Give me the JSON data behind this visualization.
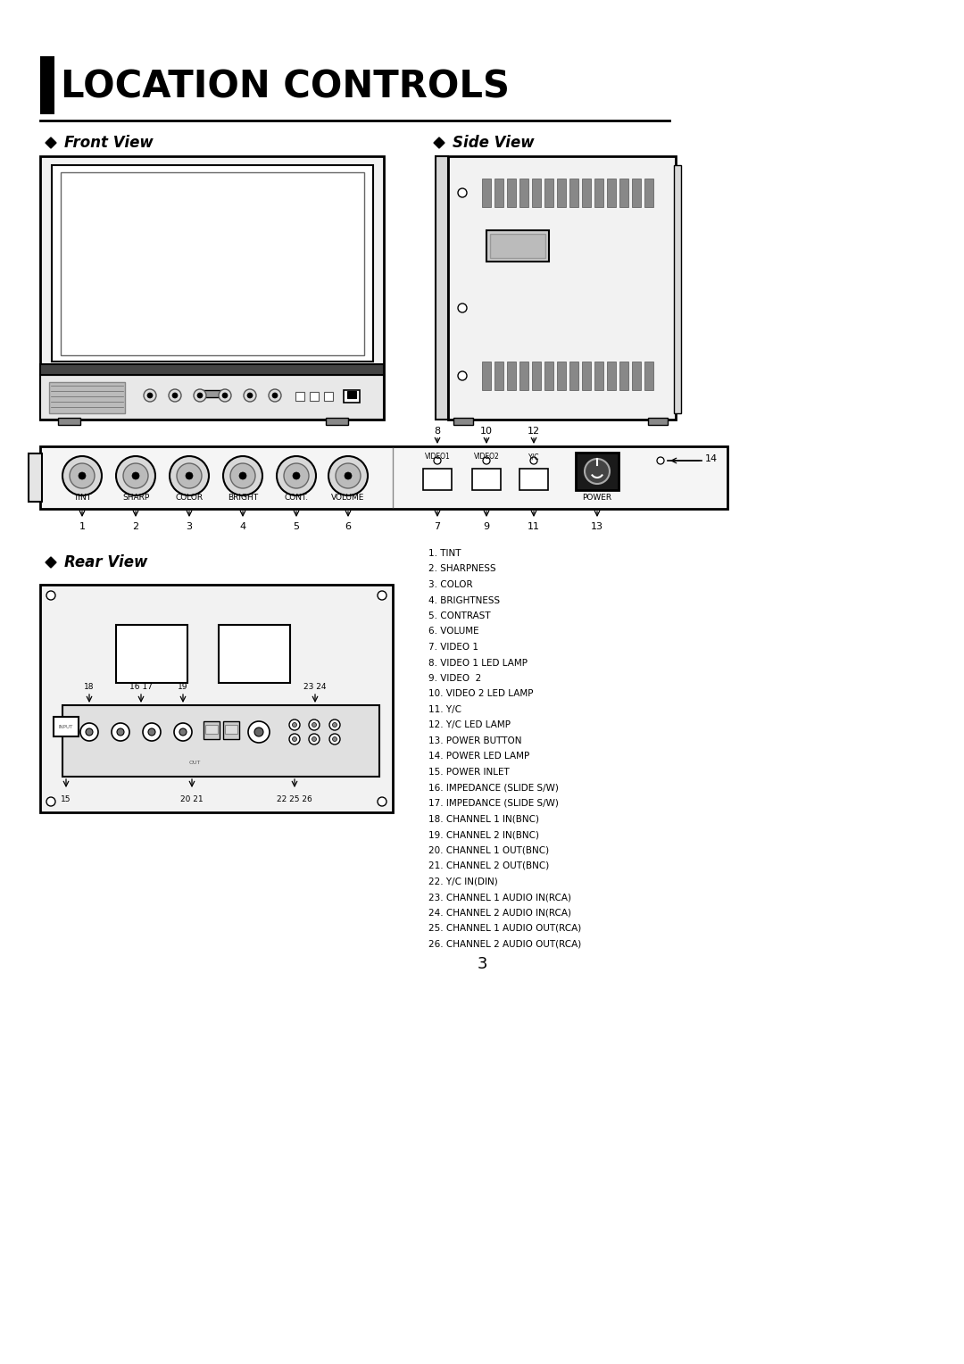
{
  "title": "LOCATION CONTROLS",
  "bg_color": "#ffffff",
  "section_front": "Front View",
  "section_side": "Side View",
  "section_rear": "Rear View",
  "front_labels": [
    "TINT",
    "SHARP",
    "COLOR",
    "BRIGHT",
    "CONT.",
    "VOLUME"
  ],
  "front_numbers": [
    "1",
    "2",
    "3",
    "4",
    "5",
    "6"
  ],
  "panel_bottom_nums": [
    "7",
    "9",
    "11",
    "13"
  ],
  "panel_top_nums": [
    "8",
    "10",
    "12"
  ],
  "legend_items": [
    "1. TINT",
    "2. SHARPNESS",
    "3. COLOR",
    "4. BRIGHTNESS",
    "5. CONTRAST",
    "6. VOLUME",
    "7. VIDEO 1",
    "8. VIDEO 1 LED LAMP",
    "9. VIDEO  2",
    "10. VIDEO 2 LED LAMP",
    "11. Y/C",
    "12. Y/C LED LAMP",
    "13. POWER BUTTON",
    "14. POWER LED LAMP",
    "15. POWER INLET",
    "16. IMPEDANCE (SLIDE S/W)",
    "17. IMPEDANCE (SLIDE S/W)",
    "18. CHANNEL 1 IN(BNC)",
    "19. CHANNEL 2 IN(BNC)",
    "20. CHANNEL 1 OUT(BNC)",
    "21. CHANNEL 2 OUT(BNC)",
    "22. Y/C IN(DIN)",
    "23. CHANNEL 1 AUDIO IN(RCA)",
    "24. CHANNEL 2 AUDIO IN(RCA)",
    "25. CHANNEL 1 AUDIO OUT(RCA)",
    "26. CHANNEL 2 AUDIO OUT(RCA)"
  ],
  "page_number": "3"
}
